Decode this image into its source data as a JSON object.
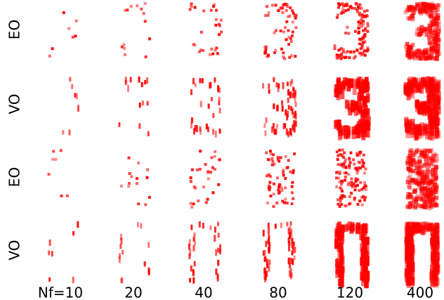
{
  "row_labels": [
    "EO",
    "VO",
    "EO",
    "VO"
  ],
  "column_labels": [
    "Nf=10",
    "20",
    "40",
    "80",
    "120",
    "400"
  ]
}
